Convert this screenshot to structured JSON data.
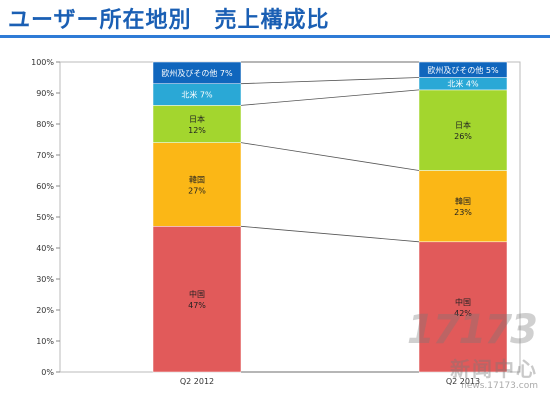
{
  "title": "ユーザー所在地別　売上構成比",
  "watermark": {
    "logo": "17173",
    "name": "新闻中心",
    "url": "news.17173.com"
  },
  "colors": {
    "title": "#1a5fb4",
    "china": "#e15a5a",
    "korea": "#fbb716",
    "japan": "#a3d62e",
    "na": "#2aa8d6",
    "eu": "#1066bd"
  },
  "chart_data": {
    "type": "bar",
    "stacked": true,
    "categories": [
      "Q2 2012",
      "Q2 2013"
    ],
    "yticks": [
      "0%",
      "10%",
      "20%",
      "30%",
      "40%",
      "50%",
      "60%",
      "70%",
      "80%",
      "90%",
      "100%"
    ],
    "ylim": [
      0,
      100
    ],
    "grid": false,
    "series": [
      {
        "key": "china",
        "label": "中国",
        "values": [
          47,
          42
        ],
        "labels": [
          "47%",
          "42%"
        ]
      },
      {
        "key": "korea",
        "label": "韓国",
        "values": [
          27,
          23
        ],
        "labels": [
          "27%",
          "23%"
        ]
      },
      {
        "key": "japan",
        "label": "日本",
        "values": [
          12,
          26
        ],
        "labels": [
          "12%",
          "26%"
        ]
      },
      {
        "key": "na",
        "label": "北米",
        "values": [
          7,
          4
        ],
        "labels": [
          "7%",
          "4%"
        ]
      },
      {
        "key": "eu",
        "label": "欧州及びその他",
        "values": [
          7,
          5
        ],
        "labels": [
          "7%",
          "5%"
        ]
      }
    ]
  }
}
